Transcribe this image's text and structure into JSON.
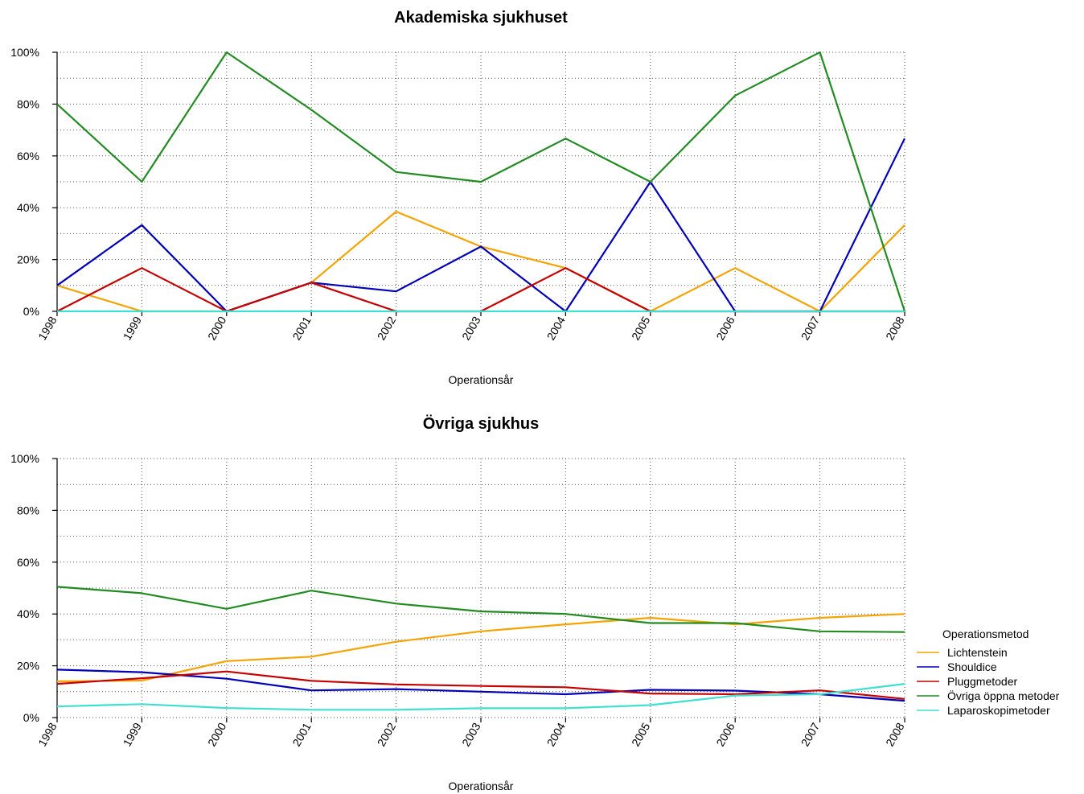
{
  "chart_data": [
    {
      "type": "line",
      "title": "Akademiska sjukhuset",
      "xlabel": "Operationsår",
      "ylabel": "",
      "x": [
        1998,
        1999,
        2000,
        2001,
        2002,
        2003,
        2004,
        2005,
        2006,
        2007,
        2008
      ],
      "x_tick_labels": [
        "1998",
        "1999",
        "2000",
        "2001",
        "2002",
        "2003",
        "2004",
        "2005",
        "2006",
        "2007",
        "2008"
      ],
      "ylim": [
        0,
        1
      ],
      "y_tick_labels": [
        "0%",
        "20%",
        "40%",
        "60%",
        "80%",
        "100%"
      ],
      "grid": true,
      "series": [
        {
          "key": "lichtenstein",
          "color": "#F5A300",
          "values": [
            0.1,
            0.0,
            0.0,
            0.111,
            0.385,
            0.25,
            0.167,
            0.0,
            0.167,
            0.0,
            0.333
          ]
        },
        {
          "key": "shouldice",
          "color": "#0000B8",
          "values": [
            0.1,
            0.333,
            0.0,
            0.111,
            0.077,
            0.25,
            0.0,
            0.5,
            0.0,
            0.0,
            0.667
          ]
        },
        {
          "key": "plugg",
          "color": "#C40000",
          "values": [
            0.0,
            0.167,
            0.0,
            0.111,
            0.0,
            0.0,
            0.167,
            0.0,
            0.0,
            0.0,
            0.0
          ]
        },
        {
          "key": "ovriga",
          "color": "#228B22",
          "values": [
            0.8,
            0.5,
            1.0,
            0.778,
            0.538,
            0.5,
            0.667,
            0.5,
            0.833,
            1.0,
            0.0
          ]
        },
        {
          "key": "laparoskopi",
          "color": "#40E0D0",
          "values": [
            0,
            0,
            0,
            0,
            0,
            0,
            0,
            0,
            0,
            0,
            0
          ]
        }
      ]
    },
    {
      "type": "line",
      "title": "Övriga sjukhus",
      "xlabel": "Operationsår",
      "ylabel": "",
      "x": [
        1998,
        1999,
        2000,
        2001,
        2002,
        2003,
        2004,
        2005,
        2006,
        2007,
        2008
      ],
      "x_tick_labels": [
        "1998",
        "1999",
        "2000",
        "2001",
        "2002",
        "2003",
        "2004",
        "2005",
        "2006",
        "2007",
        "2008"
      ],
      "ylim": [
        0,
        1
      ],
      "y_tick_labels": [
        "0%",
        "20%",
        "40%",
        "60%",
        "80%",
        "100%"
      ],
      "grid": true,
      "legend_position": "right",
      "legend_title": "Operationsmetod",
      "series": [
        {
          "key": "lichtenstein",
          "name": "Lichtenstein",
          "color": "#F5A300",
          "values": [
            0.14,
            0.143,
            0.218,
            0.235,
            0.293,
            0.333,
            0.36,
            0.385,
            0.36,
            0.385,
            0.4
          ]
        },
        {
          "key": "shouldice",
          "name": "Shouldice",
          "color": "#0000B8",
          "values": [
            0.185,
            0.175,
            0.15,
            0.105,
            0.11,
            0.1,
            0.09,
            0.107,
            0.104,
            0.09,
            0.065
          ]
        },
        {
          "key": "plugg",
          "name": "Pluggmetoder",
          "color": "#C40000",
          "values": [
            0.13,
            0.152,
            0.178,
            0.142,
            0.128,
            0.122,
            0.117,
            0.093,
            0.09,
            0.105,
            0.072
          ]
        },
        {
          "key": "ovriga",
          "name": "Övriga öppna metoder",
          "color": "#228B22",
          "values": [
            0.505,
            0.48,
            0.42,
            0.49,
            0.44,
            0.41,
            0.4,
            0.365,
            0.365,
            0.333,
            0.33
          ]
        },
        {
          "key": "laparoskopi",
          "name": "Laparoskopimetoder",
          "color": "#40E0D0",
          "values": [
            0.043,
            0.052,
            0.037,
            0.03,
            0.03,
            0.036,
            0.036,
            0.048,
            0.085,
            0.09,
            0.13
          ]
        }
      ]
    }
  ]
}
